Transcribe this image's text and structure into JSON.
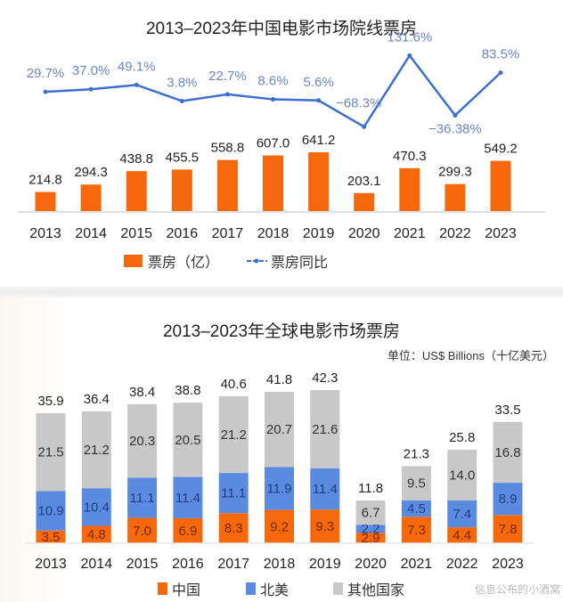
{
  "chart_data": [
    {
      "type": "bar",
      "title": "2013–2023年中国电影市场院线票房",
      "categories": [
        "2013",
        "2014",
        "2015",
        "2016",
        "2017",
        "2018",
        "2019",
        "2020",
        "2021",
        "2022",
        "2023"
      ],
      "series": [
        {
          "name": "票房（亿）",
          "type": "bar",
          "color": "#f5680c",
          "values": [
            214.8,
            294.3,
            438.8,
            455.5,
            558.8,
            607.0,
            641.2,
            203.1,
            470.3,
            299.3,
            549.2
          ],
          "labels": [
            "214.8",
            "294.3",
            "438.8",
            "455.5",
            "558.8",
            "607.0",
            "641.2",
            "203.1",
            "470.3",
            "299.3",
            "549.2"
          ]
        },
        {
          "name": "票房同比",
          "type": "line",
          "color": "#3c6fcf",
          "values": [
            29.7,
            37.0,
            49.1,
            3.8,
            22.7,
            8.6,
            5.6,
            -68.3,
            131.6,
            -36.38,
            83.5
          ],
          "labels": [
            "29.7%",
            "37.0%",
            "49.1%",
            "3.8%",
            "22.7%",
            "8.6%",
            "5.6%",
            "−68.3%",
            "131.6%",
            "−36.38%",
            "83.5%"
          ]
        }
      ],
      "xlabel": "",
      "ylabel": "",
      "legend": "bottom",
      "grid": false
    },
    {
      "type": "bar",
      "stacked": true,
      "title": "2013–2023年全球电影市场票房",
      "unit": "单位：US$ Billions（十亿美元）",
      "categories": [
        "2013",
        "2014",
        "2015",
        "2016",
        "2017",
        "2018",
        "2019",
        "2020",
        "2021",
        "2022",
        "2023"
      ],
      "series": [
        {
          "name": "中国",
          "color": "#f5680c",
          "values": [
            3.5,
            4.8,
            7.0,
            6.9,
            8.3,
            9.2,
            9.3,
            2.9,
            7.3,
            4.4,
            7.8
          ]
        },
        {
          "name": "北美",
          "color": "#5a8be0",
          "values": [
            10.9,
            10.4,
            11.1,
            11.4,
            11.1,
            11.9,
            11.4,
            2.2,
            4.5,
            7.4,
            8.9
          ]
        },
        {
          "name": "其他国家",
          "color": "#c8c8c8",
          "values": [
            21.5,
            21.2,
            20.3,
            20.5,
            21.2,
            20.7,
            21.6,
            6.7,
            9.5,
            14.0,
            16.8
          ]
        }
      ],
      "totals": [
        35.9,
        36.4,
        38.4,
        38.8,
        40.6,
        41.8,
        42.3,
        11.8,
        21.3,
        25.8,
        33.5
      ],
      "legend": "bottom",
      "grid": false
    }
  ],
  "watermark": "信息公布的小酒窝"
}
